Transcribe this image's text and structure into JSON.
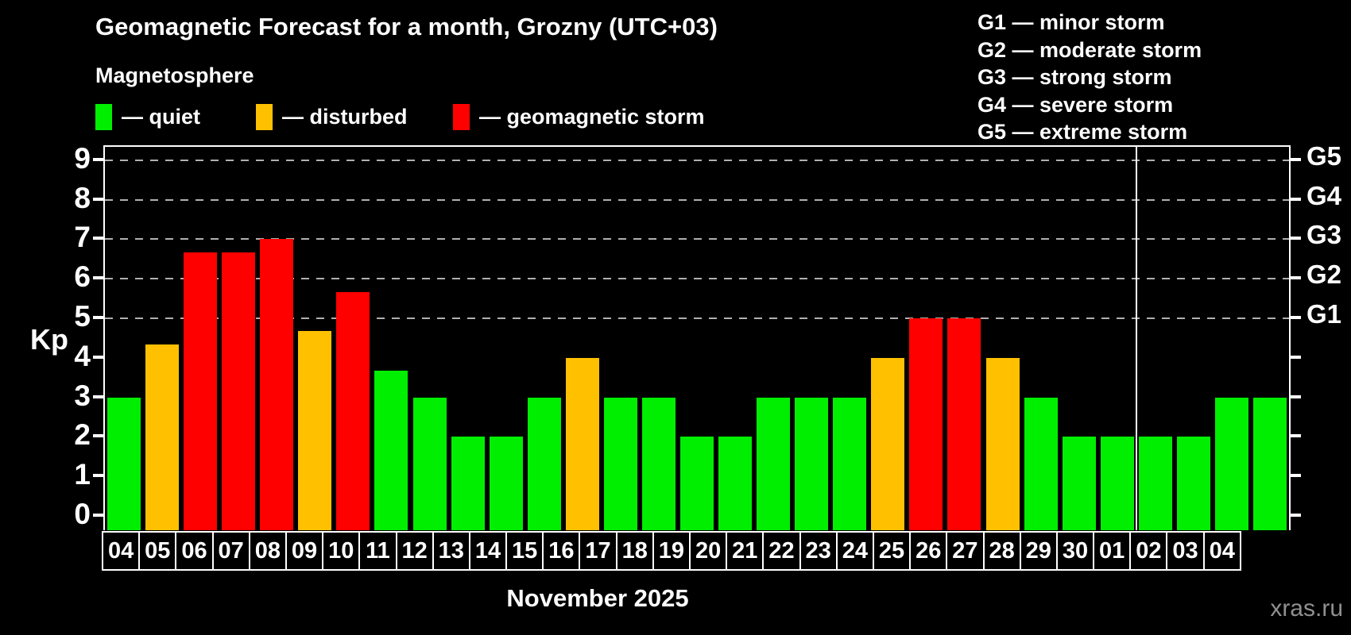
{
  "title": "Geomagnetic Forecast for a month, Grozny (UTC+03)",
  "subtitle": "Magnetosphere",
  "kp_legend": {
    "items": [
      {
        "key": "quiet",
        "label": "— quiet",
        "color": "#00ee00"
      },
      {
        "key": "disturbed",
        "label": "— disturbed",
        "color": "#ffc000"
      },
      {
        "key": "storm",
        "label": "— geomagnetic storm",
        "color": "#ff0000"
      }
    ]
  },
  "storm_scale_legend": {
    "lines": [
      "G1 — minor storm",
      "G2 — moderate storm",
      "G3 — strong storm",
      "G4 — severe storm",
      "G5 — extreme storm"
    ]
  },
  "watermark": "xras.ru",
  "colors": {
    "quiet": "#00ee00",
    "disturbed": "#ffc000",
    "storm": "#ff0000",
    "grid": "#b0b0b0",
    "axis": "#ffffff",
    "watermark": "#909090",
    "background": "#000000"
  },
  "chart_data": {
    "type": "bar",
    "title": "Geomagnetic Forecast for a month, Grozny (UTC+03)",
    "xlabel": "November 2025",
    "ylabel": "Kp",
    "ylim": [
      0,
      9.5
    ],
    "yticks": [
      0,
      1,
      2,
      3,
      4,
      5,
      6,
      7,
      8,
      9
    ],
    "gridlines_at": [
      5,
      6,
      7,
      8,
      9
    ],
    "grid_style": "dashed",
    "legend_position": "top-left",
    "right_axis_labels": [
      {
        "label": "G1",
        "value": 5
      },
      {
        "label": "G2",
        "value": 6
      },
      {
        "label": "G3",
        "value": 7
      },
      {
        "label": "G4",
        "value": 8
      },
      {
        "label": "G5",
        "value": 9
      }
    ],
    "december_start_index": 27,
    "categories": [
      "04",
      "05",
      "06",
      "07",
      "08",
      "09",
      "10",
      "11",
      "12",
      "13",
      "14",
      "15",
      "16",
      "17",
      "18",
      "19",
      "20",
      "21",
      "22",
      "23",
      "24",
      "25",
      "26",
      "27",
      "28",
      "29",
      "30",
      "01",
      "02",
      "03",
      "04"
    ],
    "values": [
      3,
      4.33,
      6.67,
      6.67,
      7,
      4.67,
      5.67,
      3.67,
      3,
      2,
      2,
      3,
      4,
      3,
      3,
      2,
      2,
      3,
      3,
      3,
      4,
      5,
      5,
      4,
      3,
      2,
      2,
      2,
      2,
      3,
      3
    ],
    "statuses": [
      "quiet",
      "disturbed",
      "storm",
      "storm",
      "storm",
      "disturbed",
      "storm",
      "quiet",
      "quiet",
      "quiet",
      "quiet",
      "quiet",
      "disturbed",
      "quiet",
      "quiet",
      "quiet",
      "quiet",
      "quiet",
      "quiet",
      "quiet",
      "disturbed",
      "storm",
      "storm",
      "disturbed",
      "quiet",
      "quiet",
      "quiet",
      "quiet",
      "quiet",
      "quiet",
      "quiet"
    ]
  }
}
